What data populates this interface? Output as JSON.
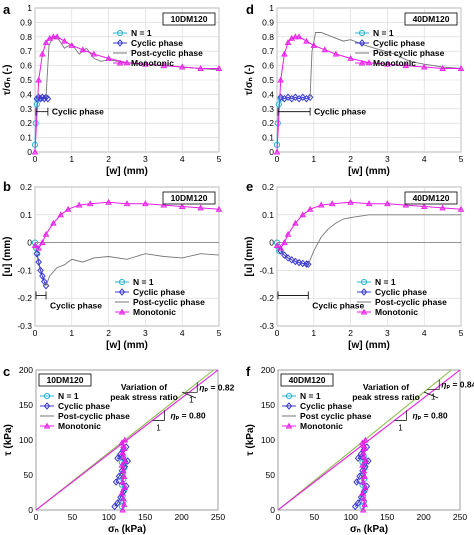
{
  "chart_data": [
    {
      "panel": "a",
      "type": "line",
      "box_label": "10DM120",
      "xlabel": "[w]  (mm)",
      "ylabel": "τ/σₙ (-)",
      "xlim": [
        0,
        5
      ],
      "ylim": [
        0,
        1
      ],
      "xticks": [
        0,
        1,
        2,
        3,
        4,
        5
      ],
      "yticks": [
        "0",
        "0.1",
        "0.2",
        "0.3",
        "0.4",
        "0.5",
        "0.6",
        "0.7",
        "0.8",
        "0.9",
        "1"
      ],
      "grid": true,
      "legend_position": "top-right",
      "annotation": "Cyclic phase",
      "annotation_range": [
        0,
        0.35
      ],
      "series": [
        {
          "name": "N = 1",
          "color": "#29b6d6",
          "marker": "circle",
          "x": [
            0,
            0.02,
            0.05,
            0.1
          ],
          "y": [
            0.05,
            0.2,
            0.33,
            0.37
          ]
        },
        {
          "name": "Cyclic phase",
          "color": "#3a3ad0",
          "marker": "diamond",
          "x": [
            0.05,
            0.1,
            0.15,
            0.2,
            0.25,
            0.3,
            0.35
          ],
          "y": [
            0.37,
            0.38,
            0.37,
            0.38,
            0.37,
            0.38,
            0.37
          ]
        },
        {
          "name": "Post-cyclic phase",
          "color": "#777777",
          "marker": "none",
          "x": [
            0.3,
            0.38,
            0.5,
            0.65,
            0.8,
            1.0,
            1.2,
            1.4,
            1.6,
            1.8,
            2.0,
            2.5,
            3.0,
            3.5,
            4.0,
            4.5,
            5.0
          ],
          "y": [
            0.38,
            0.74,
            0.8,
            0.78,
            0.72,
            0.75,
            0.68,
            0.72,
            0.65,
            0.63,
            0.64,
            0.62,
            0.61,
            0.6,
            0.59,
            0.58,
            0.57
          ]
        },
        {
          "name": "Monotonic",
          "color": "#e81ee8",
          "marker": "triangle",
          "x": [
            0,
            0.1,
            0.2,
            0.3,
            0.4,
            0.5,
            0.6,
            0.8,
            1.0,
            1.3,
            1.6,
            2.0,
            2.5,
            3.0,
            3.5,
            4.0,
            4.5,
            5.0
          ],
          "y": [
            0,
            0.5,
            0.68,
            0.76,
            0.79,
            0.8,
            0.8,
            0.77,
            0.74,
            0.71,
            0.68,
            0.65,
            0.62,
            0.61,
            0.6,
            0.59,
            0.58,
            0.58
          ]
        }
      ]
    },
    {
      "panel": "d",
      "type": "line",
      "box_label": "40DM120",
      "xlabel": "[w]  (mm)",
      "ylabel": "τ/σₙ (-)",
      "xlim": [
        0,
        5
      ],
      "ylim": [
        0,
        1
      ],
      "xticks": [
        0,
        1,
        2,
        3,
        4,
        5
      ],
      "yticks": [
        "0",
        "0.1",
        "0.2",
        "0.3",
        "0.4",
        "0.5",
        "0.6",
        "0.7",
        "0.8",
        "0.9",
        "1"
      ],
      "grid": true,
      "legend_position": "top-right",
      "annotation": "Cyclic phase",
      "annotation_range": [
        0,
        0.9
      ],
      "series": [
        {
          "name": "N = 1",
          "color": "#29b6d6",
          "marker": "circle",
          "x": [
            0,
            0.02,
            0.05,
            0.1
          ],
          "y": [
            0.05,
            0.2,
            0.33,
            0.37
          ]
        },
        {
          "name": "Cyclic phase",
          "color": "#3a3ad0",
          "marker": "diamond",
          "x": [
            0.1,
            0.2,
            0.3,
            0.4,
            0.5,
            0.6,
            0.7,
            0.8,
            0.9
          ],
          "y": [
            0.38,
            0.37,
            0.38,
            0.37,
            0.38,
            0.37,
            0.38,
            0.37,
            0.38
          ]
        },
        {
          "name": "Post cyclic phase",
          "color": "#777777",
          "marker": "none",
          "x": [
            0.9,
            0.95,
            1.05,
            1.2,
            1.5,
            1.8,
            2.0,
            2.4,
            2.8,
            3.2,
            3.6,
            4.0,
            4.5,
            5.0
          ],
          "y": [
            0.38,
            0.7,
            0.83,
            0.83,
            0.8,
            0.77,
            0.78,
            0.74,
            0.71,
            0.68,
            0.63,
            0.61,
            0.59,
            0.58
          ]
        },
        {
          "name": "Monotonic",
          "color": "#e81ee8",
          "marker": "triangle",
          "x": [
            0,
            0.1,
            0.2,
            0.3,
            0.4,
            0.5,
            0.6,
            0.8,
            1.0,
            1.3,
            1.6,
            2.0,
            2.5,
            3.0,
            3.5,
            4.0,
            4.5,
            5.0
          ],
          "y": [
            0,
            0.5,
            0.68,
            0.76,
            0.79,
            0.8,
            0.8,
            0.77,
            0.74,
            0.71,
            0.68,
            0.65,
            0.62,
            0.61,
            0.6,
            0.59,
            0.58,
            0.58
          ]
        }
      ]
    },
    {
      "panel": "b",
      "type": "line",
      "box_label": "10DM120",
      "xlabel": "[w]  (mm)",
      "ylabel": "[u]  (mm)",
      "xlim": [
        0,
        5
      ],
      "ylim": [
        -0.3,
        0.2
      ],
      "xticks": [
        0,
        1,
        2,
        3,
        4,
        5
      ],
      "yticks": [
        "-0.3",
        "-0.2",
        "-0.1",
        "0",
        "0.1",
        "0.2"
      ],
      "grid": true,
      "legend_position": "bottom-right",
      "annotation": "Cyclic phase",
      "annotation_range": [
        0,
        0.3
      ],
      "series": [
        {
          "name": "N = 1",
          "color": "#29b6d6",
          "marker": "circle",
          "x": [
            0,
            0.03,
            0.06
          ],
          "y": [
            0,
            -0.02,
            -0.04
          ]
        },
        {
          "name": "Cyclic phase",
          "color": "#3a3ad0",
          "marker": "diamond",
          "x": [
            0.05,
            0.1,
            0.15,
            0.2,
            0.25,
            0.3
          ],
          "y": [
            -0.04,
            -0.07,
            -0.1,
            -0.12,
            -0.14,
            -0.155
          ]
        },
        {
          "name": "Post-cyclic phase",
          "color": "#777777",
          "marker": "none",
          "x": [
            0.3,
            0.4,
            0.6,
            0.8,
            1.0,
            1.3,
            1.6,
            2.0,
            2.5,
            3.0,
            3.5,
            4.0,
            4.5,
            5.0
          ],
          "y": [
            -0.155,
            -0.12,
            -0.09,
            -0.08,
            -0.06,
            -0.07,
            -0.055,
            -0.05,
            -0.06,
            -0.04,
            -0.05,
            -0.055,
            -0.04,
            -0.045
          ]
        },
        {
          "name": "Monotonic",
          "color": "#e81ee8",
          "marker": "triangle",
          "x": [
            0,
            0.1,
            0.2,
            0.3,
            0.5,
            0.7,
            0.9,
            1.2,
            1.5,
            2.0,
            2.5,
            3.0,
            3.5,
            4.0,
            4.5,
            5.0
          ],
          "y": [
            -0.01,
            -0.02,
            0,
            0.03,
            0.07,
            0.1,
            0.12,
            0.135,
            0.14,
            0.145,
            0.14,
            0.14,
            0.135,
            0.13,
            0.125,
            0.12
          ]
        }
      ]
    },
    {
      "panel": "e",
      "type": "line",
      "box_label": "40DM120",
      "xlabel": "[w]  (mm)",
      "ylabel": "[u]  (mm)",
      "xlim": [
        0,
        5
      ],
      "ylim": [
        -0.3,
        0.2
      ],
      "xticks": [
        0,
        1,
        2,
        3,
        4,
        5
      ],
      "yticks": [
        "-0.3",
        "-0.2",
        "-0.1",
        "0",
        "0.1",
        "0.2"
      ],
      "grid": true,
      "legend_position": "bottom-right",
      "annotation": "Cyclic phase",
      "annotation_range": [
        0,
        0.85
      ],
      "series": [
        {
          "name": "N = 1",
          "color": "#29b6d6",
          "marker": "circle",
          "x": [
            0,
            0.03,
            0.06
          ],
          "y": [
            0,
            -0.015,
            -0.03
          ]
        },
        {
          "name": "Cyclic phase",
          "color": "#3a3ad0",
          "marker": "diamond",
          "x": [
            0.1,
            0.2,
            0.3,
            0.4,
            0.5,
            0.6,
            0.7,
            0.8,
            0.85
          ],
          "y": [
            -0.03,
            -0.045,
            -0.055,
            -0.062,
            -0.068,
            -0.072,
            -0.075,
            -0.077,
            -0.078
          ]
        },
        {
          "name": "Post-cyclic phase",
          "color": "#777777",
          "marker": "none",
          "x": [
            0.85,
            1.0,
            1.2,
            1.4,
            1.6,
            1.8,
            2.0,
            2.5,
            3.0,
            3.5,
            4.0,
            4.5,
            5.0
          ],
          "y": [
            -0.078,
            -0.03,
            0.02,
            0.05,
            0.07,
            0.085,
            0.09,
            0.1,
            0.1,
            0.1,
            0.1,
            0.1,
            0.1
          ]
        },
        {
          "name": "Monotonic",
          "color": "#e81ee8",
          "marker": "triangle",
          "x": [
            0,
            0.1,
            0.2,
            0.3,
            0.5,
            0.7,
            0.9,
            1.2,
            1.5,
            2.0,
            2.5,
            3.0,
            3.5,
            4.0,
            4.5,
            5.0
          ],
          "y": [
            -0.01,
            -0.02,
            0,
            0.03,
            0.07,
            0.1,
            0.12,
            0.135,
            0.14,
            0.145,
            0.14,
            0.14,
            0.135,
            0.13,
            0.125,
            0.12
          ]
        }
      ]
    },
    {
      "panel": "c",
      "type": "scatter",
      "box_label": "10DM120",
      "xlabel": "σₙ  (kPa)",
      "ylabel": "τ  (kPa)",
      "xlim": [
        0,
        250
      ],
      "ylim": [
        0,
        200
      ],
      "xticks": [
        0,
        50,
        100,
        150,
        200,
        250
      ],
      "yticks": [
        "0",
        "50",
        "100",
        "150",
        "200"
      ],
      "grid": false,
      "legend_position": "top-left",
      "annotation": "Variation of\npeak stress ratio",
      "ratio_labels": [
        "η",
        "ₚ = 0.82",
        "η",
        "ₚ = 0.80"
      ],
      "slope_triangle_value": "1",
      "ratio_lines": [
        {
          "slope": 0.82,
          "color": "#8fbf52"
        },
        {
          "slope": 0.8,
          "color": "#e81ee8"
        }
      ],
      "series": [
        {
          "name": "N = 1",
          "color": "#29b6d6",
          "marker": "circle",
          "x": [
            118,
            120,
            119,
            121,
            118,
            120,
            119,
            121,
            118,
            120
          ],
          "y": [
            5,
            12,
            20,
            28,
            36,
            44,
            52,
            60,
            68,
            76
          ]
        },
        {
          "name": "Cyclic phase",
          "color": "#3a3ad0",
          "marker": "diamond",
          "x": [
            108,
            112,
            116,
            120,
            124,
            110,
            114,
            118,
            122,
            126,
            112,
            116,
            120,
            124
          ],
          "y": [
            5,
            10,
            18,
            26,
            34,
            40,
            48,
            56,
            62,
            70,
            74,
            80,
            86,
            90
          ]
        },
        {
          "name": "Post-cyclic phase",
          "color": "#777777",
          "marker": "none",
          "x": [
            118,
            119,
            120,
            121,
            120,
            120
          ],
          "y": [
            40,
            55,
            70,
            85,
            95,
            98
          ]
        },
        {
          "name": "Monotonic",
          "color": "#e81ee8",
          "marker": "triangle",
          "x": [
            119,
            121,
            120,
            118,
            122,
            119,
            121,
            120,
            118,
            122,
            120,
            119,
            121,
            120,
            118,
            122
          ],
          "y": [
            0,
            8,
            16,
            24,
            32,
            40,
            48,
            56,
            64,
            70,
            76,
            82,
            88,
            92,
            96,
            100
          ]
        }
      ]
    },
    {
      "panel": "f",
      "type": "scatter",
      "box_label": "40DM120",
      "xlabel": "σₙ  (kPa)",
      "ylabel": "τ  (kPa)",
      "xlim": [
        0,
        250
      ],
      "ylim": [
        0,
        200
      ],
      "xticks": [
        0,
        50,
        100,
        150,
        200,
        250
      ],
      "yticks": [
        "0",
        "50",
        "100",
        "150",
        "200"
      ],
      "grid": false,
      "legend_position": "top-left",
      "annotation": "Variation of\npeak stress ratio",
      "ratio_labels": [
        "η",
        "ₚ = 0.84",
        "η",
        "ₚ = 0.80"
      ],
      "slope_triangle_value": "1",
      "ratio_lines": [
        {
          "slope": 0.84,
          "color": "#8fbf52"
        },
        {
          "slope": 0.8,
          "color": "#e81ee8"
        }
      ],
      "series": [
        {
          "name": "N = 1",
          "color": "#29b6d6",
          "marker": "circle",
          "x": [
            116,
            118,
            117,
            119,
            116,
            118,
            117,
            119,
            116,
            118
          ],
          "y": [
            5,
            12,
            20,
            28,
            36,
            44,
            52,
            60,
            68,
            76
          ]
        },
        {
          "name": "Cyclic phase",
          "color": "#3a3ad0",
          "marker": "diamond",
          "x": [
            106,
            110,
            114,
            118,
            122,
            108,
            112,
            116,
            120,
            124,
            110,
            114,
            118,
            122
          ],
          "y": [
            5,
            10,
            18,
            26,
            34,
            40,
            48,
            56,
            62,
            70,
            74,
            80,
            86,
            90
          ]
        },
        {
          "name": "Post cyclic phase",
          "color": "#777777",
          "marker": "none",
          "x": [
            116,
            117,
            118,
            119,
            118,
            118
          ],
          "y": [
            40,
            55,
            70,
            85,
            95,
            98
          ]
        },
        {
          "name": "Monotonic",
          "color": "#e81ee8",
          "marker": "triangle",
          "x": [
            117,
            119,
            118,
            116,
            120,
            117,
            119,
            118,
            116,
            120,
            118,
            117,
            119,
            118,
            116,
            120
          ],
          "y": [
            0,
            8,
            16,
            24,
            32,
            40,
            48,
            56,
            64,
            70,
            76,
            82,
            88,
            92,
            96,
            100
          ]
        }
      ]
    }
  ]
}
